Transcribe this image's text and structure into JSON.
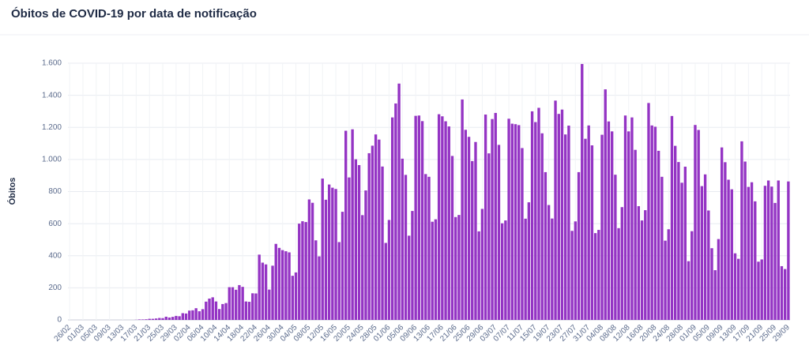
{
  "chart_data": {
    "type": "bar",
    "title": "Óbitos de COVID-19 por data de notificação",
    "y_label": "Óbitos",
    "color": "#9434c4",
    "grid": true,
    "ylim": [
      0,
      1600
    ],
    "yticks": [
      0,
      200,
      400,
      600,
      800,
      {
        "value": 1000,
        "label": "1.000"
      },
      {
        "value": 1200,
        "label": "1.200"
      },
      {
        "value": 1400,
        "label": "1.400"
      },
      {
        "value": 1600,
        "label": "1.600"
      }
    ],
    "categories": [
      "26/02",
      null,
      null,
      null,
      "01/03",
      null,
      null,
      null,
      "05/03",
      null,
      null,
      null,
      "09/03",
      null,
      null,
      null,
      "13/03",
      null,
      null,
      null,
      "17/03",
      null,
      null,
      null,
      "21/03",
      null,
      null,
      null,
      "25/03",
      null,
      null,
      null,
      "29/03",
      null,
      null,
      null,
      "02/04",
      null,
      null,
      null,
      "06/04",
      null,
      null,
      null,
      "10/04",
      null,
      null,
      null,
      "14/04",
      null,
      null,
      null,
      "18/04",
      null,
      null,
      null,
      "22/04",
      null,
      null,
      null,
      "26/04",
      null,
      null,
      null,
      "30/04",
      null,
      null,
      null,
      "04/05",
      null,
      null,
      null,
      "08/05",
      null,
      null,
      null,
      "12/05",
      null,
      null,
      null,
      "16/05",
      null,
      null,
      null,
      "20/05",
      null,
      null,
      null,
      "24/05",
      null,
      null,
      null,
      "28/05",
      null,
      null,
      null,
      "01/06",
      null,
      null,
      null,
      "05/06",
      null,
      null,
      null,
      "09/06",
      null,
      null,
      null,
      "13/06",
      null,
      null,
      null,
      "17/06",
      null,
      null,
      null,
      "21/06",
      null,
      null,
      null,
      "25/06",
      null,
      null,
      null,
      "29/06",
      null,
      null,
      null,
      "03/07",
      null,
      null,
      null,
      "07/07",
      null,
      null,
      null,
      "11/07",
      null,
      null,
      null,
      "15/07",
      null,
      null,
      null,
      "19/07",
      null,
      null,
      null,
      "23/07",
      null,
      null,
      null,
      "27/07",
      null,
      null,
      null,
      "31/07",
      null,
      null,
      null,
      "04/08",
      null,
      null,
      null,
      "08/08",
      null,
      null,
      null,
      "12/08",
      null,
      null,
      null,
      "16/08",
      null,
      null,
      null,
      "20/08",
      null,
      null,
      null,
      "24/08",
      null,
      null,
      null,
      "28/08",
      null,
      null,
      null,
      "01/09",
      null,
      null,
      null,
      "05/09",
      null,
      null,
      null,
      "09/09",
      null,
      null,
      null,
      "13/09",
      null,
      null,
      null,
      "17/09",
      null,
      null,
      null,
      "21/09",
      null,
      null,
      null,
      "25/09",
      null,
      null,
      null,
      "29/09"
    ],
    "values": [
      0,
      0,
      0,
      0,
      0,
      0,
      0,
      0,
      0,
      0,
      0,
      0,
      0,
      0,
      0,
      0,
      0,
      0,
      0,
      0,
      1,
      3,
      3,
      4,
      7,
      7,
      9,
      12,
      11,
      20,
      15,
      19,
      25,
      23,
      42,
      40,
      58,
      60,
      73,
      54,
      67,
      114,
      133,
      141,
      115,
      68,
      99,
      105,
      204,
      204,
      188,
      217,
      206,
      115,
      113,
      166,
      165,
      407,
      357,
      346,
      189,
      338,
      474,
      449,
      435,
      428,
      421,
      275,
      296,
      600,
      615,
      610,
      751,
      730,
      496,
      396,
      881,
      749,
      844,
      824,
      816,
      485,
      674,
      1179,
      888,
      1188,
      1001,
      965,
      653,
      807,
      1039,
      1086,
      1156,
      1124,
      956,
      480,
      623,
      1262,
      1349,
      1473,
      1005,
      904,
      525,
      679,
      1272,
      1274,
      1239,
      909,
      892,
      612,
      627,
      1282,
      1269,
      1238,
      1206,
      1022,
      641,
      654,
      1374,
      1185,
      1141,
      990,
      1109,
      552,
      692,
      1280,
      1038,
      1252,
      1290,
      1091,
      602,
      620,
      1254,
      1223,
      1220,
      1214,
      1071,
      631,
      733,
      1300,
      1233,
      1322,
      1163,
      921,
      716,
      632,
      1367,
      1284,
      1311,
      1156,
      1211,
      555,
      614,
      921,
      1595,
      1129,
      1212,
      1088,
      541,
      561,
      1154,
      1437,
      1237,
      1175,
      905,
      572,
      703,
      1274,
      1175,
      1262,
      1060,
      709,
      620,
      684,
      1352,
      1212,
      1204,
      1054,
      892,
      494,
      565,
      1271,
      1085,
      984,
      855,
      955,
      366,
      553,
      1215,
      1184,
      834,
      907,
      682,
      447,
      310,
      504,
      1075,
      983,
      874,
      814,
      415,
      381,
      1113,
      987,
      829,
      858,
      739,
      363,
      377,
      836,
      869,
      831,
      729,
      869,
      335,
      317,
      863
    ]
  }
}
